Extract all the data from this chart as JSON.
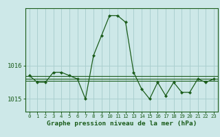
{
  "title": "Graphe pression niveau de la mer (hPa)",
  "bg_color": "#cde8e8",
  "grid_color": "#aacfcf",
  "line_color": "#1a5c1a",
  "marker_color": "#1a5c1a",
  "x_ticks": [
    0,
    1,
    2,
    3,
    4,
    5,
    6,
    7,
    8,
    9,
    10,
    11,
    12,
    13,
    14,
    15,
    16,
    17,
    18,
    19,
    20,
    21,
    22,
    23
  ],
  "ylim": [
    1014.62,
    1017.72
  ],
  "yticks": [
    1015,
    1016
  ],
  "main_series": [
    1015.7,
    1015.5,
    1015.5,
    1015.8,
    1015.8,
    1015.7,
    1015.6,
    1015.0,
    1016.3,
    1016.9,
    1017.5,
    1017.5,
    1017.3,
    1015.8,
    1015.3,
    1015.0,
    1015.5,
    1015.1,
    1015.5,
    1015.2,
    1015.2,
    1015.6,
    1015.5,
    1015.6
  ],
  "flat_lines": [
    1015.68,
    1015.6,
    1015.54
  ]
}
